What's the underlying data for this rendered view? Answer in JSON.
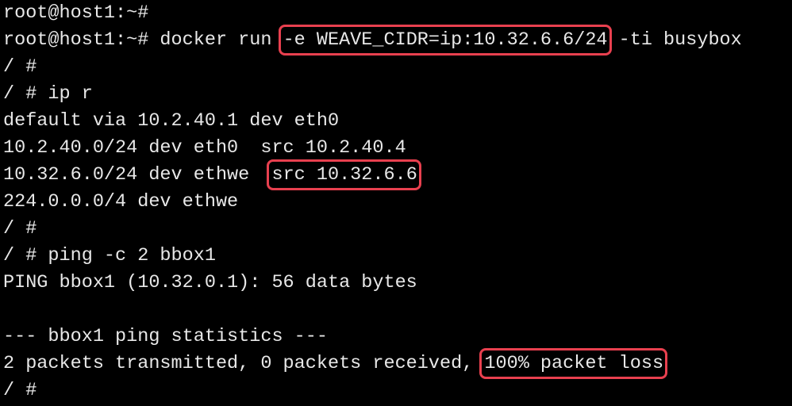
{
  "terminal": {
    "highlight_color": "#e8404f",
    "lines": [
      {
        "pre": "root@host1:~#",
        "hl": "",
        "post": ""
      },
      {
        "pre": "root@host1:~# docker run ",
        "hl": "-e WEAVE_CIDR=ip:10.32.6.6/24",
        "post": " -ti busybox"
      },
      {
        "pre": "/ #",
        "hl": "",
        "post": ""
      },
      {
        "pre": "/ # ip r",
        "hl": "",
        "post": ""
      },
      {
        "pre": "default via 10.2.40.1 dev eth0",
        "hl": "",
        "post": ""
      },
      {
        "pre": "10.2.40.0/24 dev eth0  src 10.2.40.4",
        "hl": "",
        "post": ""
      },
      {
        "pre": "10.32.6.0/24 dev ethwe  ",
        "hl": "src 10.32.6.6",
        "post": ""
      },
      {
        "pre": "224.0.0.0/4 dev ethwe",
        "hl": "",
        "post": ""
      },
      {
        "pre": "/ #",
        "hl": "",
        "post": ""
      },
      {
        "pre": "/ # ping -c 2 bbox1",
        "hl": "",
        "post": ""
      },
      {
        "pre": "PING bbox1 (10.32.0.1): 56 data bytes",
        "hl": "",
        "post": ""
      },
      {
        "pre": "",
        "hl": "",
        "post": ""
      },
      {
        "pre": "--- bbox1 ping statistics ---",
        "hl": "",
        "post": ""
      },
      {
        "pre": "2 packets transmitted, 0 packets received, ",
        "hl": "100% packet loss",
        "post": ""
      },
      {
        "pre": "/ #",
        "hl": "",
        "post": ""
      }
    ]
  }
}
